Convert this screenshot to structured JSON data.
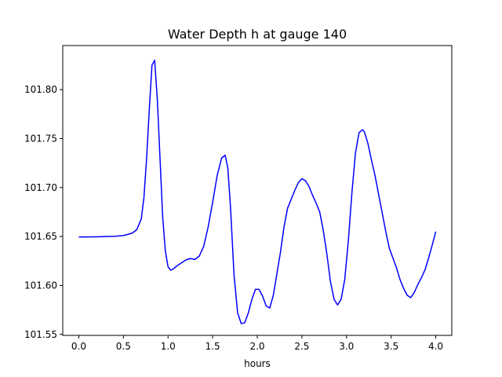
{
  "chart_data": {
    "type": "line",
    "title": "Water Depth h at gauge 140",
    "xlabel": "hours",
    "ylabel": "",
    "xlim": [
      -0.18,
      4.18
    ],
    "ylim": [
      101.549,
      101.845
    ],
    "x_ticks": [
      0.0,
      0.5,
      1.0,
      1.5,
      2.0,
      2.5,
      3.0,
      3.5,
      4.0
    ],
    "x_tick_labels": [
      "0.0",
      "0.5",
      "1.0",
      "1.5",
      "2.0",
      "2.5",
      "3.0",
      "3.5",
      "4.0"
    ],
    "y_ticks": [
      101.55,
      101.6,
      101.65,
      101.7,
      101.75,
      101.8
    ],
    "y_tick_labels": [
      "101.55",
      "101.60",
      "101.65",
      "101.70",
      "101.75",
      "101.80"
    ],
    "grid": false,
    "legend": "none",
    "series": [
      {
        "color": "#0000ff",
        "x": [
          0.0,
          0.2,
          0.4,
          0.5,
          0.6,
          0.65,
          0.7,
          0.73,
          0.76,
          0.79,
          0.82,
          0.85,
          0.88,
          0.91,
          0.94,
          0.97,
          1.0,
          1.03,
          1.06,
          1.1,
          1.15,
          1.2,
          1.25,
          1.3,
          1.35,
          1.4,
          1.45,
          1.5,
          1.55,
          1.6,
          1.64,
          1.67,
          1.7,
          1.74,
          1.78,
          1.82,
          1.86,
          1.9,
          1.94,
          1.98,
          2.02,
          2.06,
          2.1,
          2.14,
          2.18,
          2.22,
          2.26,
          2.3,
          2.34,
          2.38,
          2.42,
          2.46,
          2.5,
          2.54,
          2.58,
          2.62,
          2.66,
          2.7,
          2.74,
          2.78,
          2.82,
          2.86,
          2.9,
          2.94,
          2.98,
          3.02,
          3.06,
          3.1,
          3.14,
          3.18,
          3.2,
          3.24,
          3.28,
          3.32,
          3.36,
          3.4,
          3.44,
          3.48,
          3.52,
          3.56,
          3.6,
          3.64,
          3.68,
          3.72,
          3.76,
          3.8,
          3.84,
          3.88,
          3.92,
          3.96,
          4.0
        ],
        "y": [
          101.6495,
          101.6497,
          101.6502,
          101.651,
          101.6535,
          101.657,
          101.668,
          101.69,
          101.73,
          101.78,
          101.825,
          101.83,
          101.79,
          101.73,
          101.67,
          101.635,
          101.619,
          101.6155,
          101.617,
          101.62,
          101.623,
          101.626,
          101.6275,
          101.6265,
          101.63,
          101.64,
          101.66,
          101.685,
          101.712,
          101.73,
          101.733,
          101.72,
          101.68,
          101.61,
          101.572,
          101.561,
          101.562,
          101.572,
          101.586,
          101.596,
          101.596,
          101.589,
          101.579,
          101.577,
          101.59,
          101.612,
          101.634,
          101.66,
          101.679,
          101.688,
          101.697,
          101.705,
          101.709,
          101.707,
          101.701,
          101.692,
          101.684,
          101.675,
          101.656,
          101.632,
          101.604,
          101.586,
          101.58,
          101.586,
          101.606,
          101.645,
          101.694,
          101.735,
          101.756,
          101.759,
          101.757,
          101.745,
          101.728,
          101.712,
          101.693,
          101.674,
          101.655,
          101.638,
          101.628,
          101.618,
          101.606,
          101.597,
          101.59,
          101.5875,
          101.593,
          101.601,
          101.608,
          101.616,
          101.628,
          101.641,
          101.655
        ]
      }
    ]
  }
}
